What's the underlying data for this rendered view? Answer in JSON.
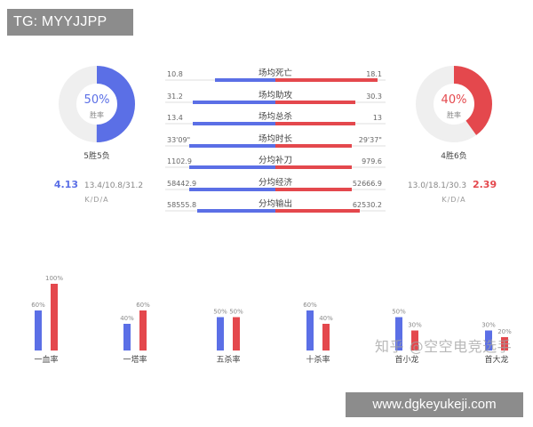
{
  "tag": "TG: MYYJJPP",
  "watermark": "知乎 @空空电竞选手",
  "site": "www.dgkeyukeji.com",
  "colors": {
    "blue": "#5b6fe6",
    "red": "#e4484d",
    "track": "#efefef"
  },
  "left_team": {
    "win_rate": 50,
    "win_rate_text": "50%",
    "win_rate_label": "胜率",
    "record": "5胜5负",
    "kda": "4.13",
    "kda_detail": "13.4/10.8/31.2",
    "kda_label": "K/D/A"
  },
  "right_team": {
    "win_rate": 40,
    "win_rate_text": "40%",
    "win_rate_label": "胜率",
    "record": "4胜6负",
    "kda": "2.39",
    "kda_detail": "13.0/18.1/30.3",
    "kda_label": "K/D/A"
  },
  "stats": [
    {
      "label": "场均死亡",
      "left": "10.8",
      "right": "18.1",
      "left_share": 0.37,
      "right_share": 0.63
    },
    {
      "label": "场均助攻",
      "left": "31.2",
      "right": "30.3",
      "left_share": 0.51,
      "right_share": 0.49
    },
    {
      "label": "场均总杀",
      "left": "13.4",
      "right": "13",
      "left_share": 0.51,
      "right_share": 0.49
    },
    {
      "label": "场均时长",
      "left": "33'09\"",
      "right": "29'37\"",
      "left_share": 0.53,
      "right_share": 0.47
    },
    {
      "label": "分均补刀",
      "left": "1102.9",
      "right": "979.6",
      "left_share": 0.53,
      "right_share": 0.47
    },
    {
      "label": "分均经济",
      "left": "58442.9",
      "right": "52666.9",
      "left_share": 0.53,
      "right_share": 0.47
    },
    {
      "label": "分均输出",
      "left": "58555.8",
      "right": "62530.2",
      "left_share": 0.48,
      "right_share": 0.52
    }
  ],
  "chart_data": {
    "type": "bar",
    "categories": [
      "一血率",
      "一塔率",
      "五杀率",
      "十杀率",
      "首小龙",
      "首大龙"
    ],
    "series": [
      {
        "values": [
          60,
          40,
          50,
          60,
          50,
          30
        ],
        "labels": [
          "60%",
          "40%",
          "50%",
          "60%",
          "50%",
          "30%"
        ]
      },
      {
        "values": [
          100,
          60,
          50,
          40,
          30,
          20
        ],
        "labels": [
          "100%",
          "60%",
          "50%",
          "40%",
          "30%",
          "20%"
        ]
      }
    ],
    "ylim": [
      0,
      100
    ]
  }
}
